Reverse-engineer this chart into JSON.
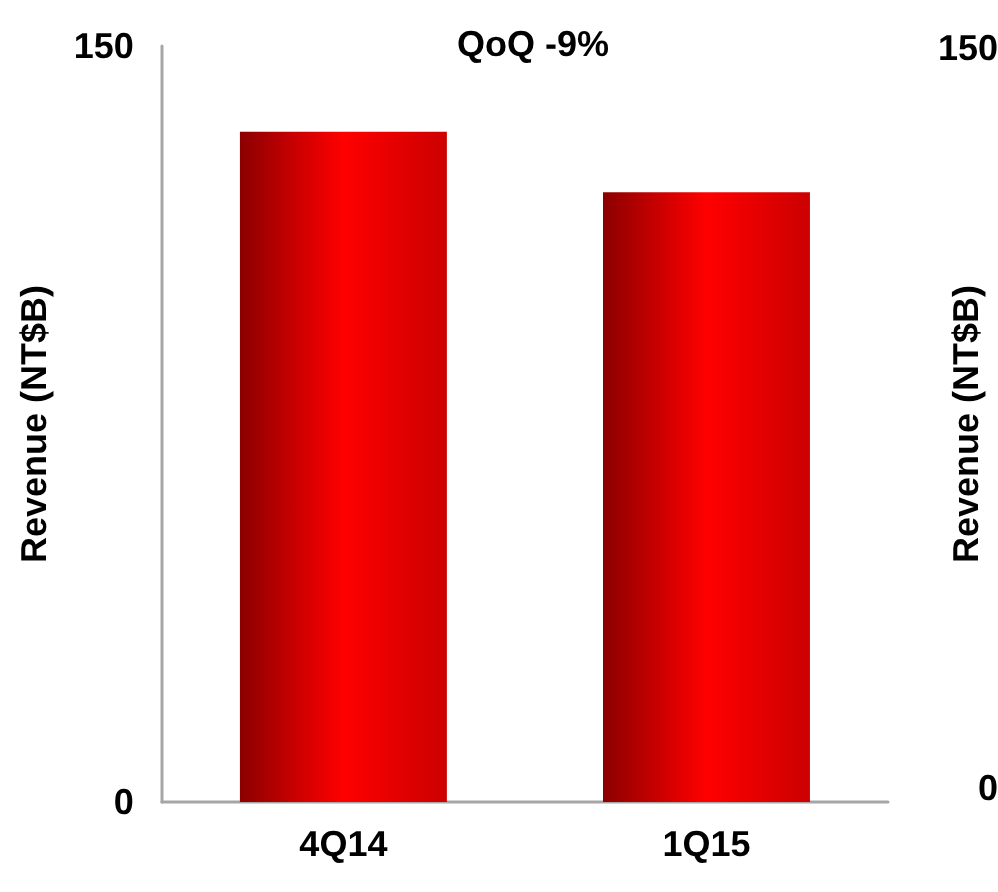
{
  "chart_data": [
    {
      "type": "bar",
      "title": "QoQ -9%",
      "ylabel": "Revenue (NT$B)",
      "categories": [
        "4Q14",
        "1Q15"
      ],
      "values": [
        133,
        121
      ],
      "color": "#ff0000",
      "ylim": [
        0,
        150
      ],
      "yticks": [
        0,
        150
      ]
    },
    {
      "type": "other",
      "ylabel": "Revenue (NT$B)",
      "annotations": [
        "150",
        "0"
      ]
    }
  ]
}
